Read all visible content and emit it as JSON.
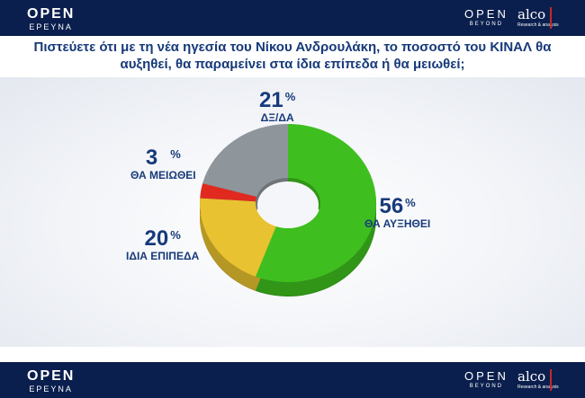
{
  "header": {
    "left_brand": "OPEN",
    "left_sub": "ΕΡΕΥΝΑ",
    "right_brand": "OPEN",
    "right_sub": "BEYOND",
    "partner": "alco",
    "partner_sub": "Research & analysis"
  },
  "footer": {
    "left_brand": "OPEN",
    "left_sub": "ΕΡΕΥΝΑ",
    "right_brand": "OPEN",
    "right_sub": "BEYOND",
    "partner": "alco",
    "partner_sub": "Research & analysis"
  },
  "chart_data": {
    "type": "pie",
    "donut": true,
    "title": "Πιστεύετε ότι  με τη νέα ηγεσία του Νίκου Ανδρουλάκη, το ποσοστό του ΚΙΝΑΛ θα αυξηθεί, θα παραμείνει στα ίδια επίπεδα ή θα μειωθεί;",
    "unit": "%",
    "slices": [
      {
        "label": "ΘΑ ΑΥΞΗΘΕΙ",
        "value": 56,
        "value_label": "56",
        "color": "#3fbf1f"
      },
      {
        "label": "ΙΔΙΑ ΕΠΙΠΕΔΑ",
        "value": 20,
        "value_label": "20",
        "color": "#e8c230"
      },
      {
        "label": "ΘΑ ΜΕΙΩΘΕΙ",
        "value": 3,
        "value_label": "3",
        "color": "#e02a1f"
      },
      {
        "label": "ΔΞ/ΔΑ",
        "value": 21,
        "value_label": "21",
        "color": "#8e959b"
      }
    ]
  }
}
